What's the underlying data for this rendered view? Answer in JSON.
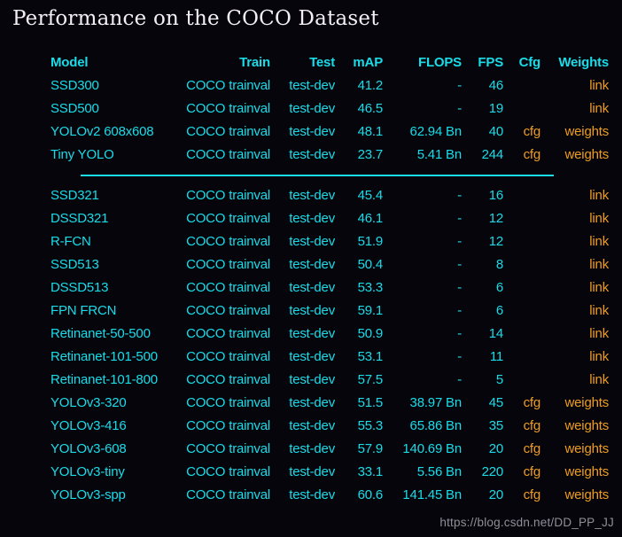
{
  "page": {
    "title": "Performance on the COCO Dataset",
    "watermark": "https://blog.csdn.net/DD_PP_JJ"
  },
  "colors": {
    "background": "#07050c",
    "cyan": "#19dce8",
    "orange": "#ee9d20",
    "title": "#f2f0f4",
    "watermark": "#8f8f98"
  },
  "table": {
    "headers": [
      "Model",
      "Train",
      "Test",
      "mAP",
      "FLOPS",
      "FPS",
      "Cfg",
      "Weights"
    ],
    "groups": [
      {
        "rows": [
          {
            "model": "SSD300",
            "train": "COCO trainval",
            "test": "test-dev",
            "map": "41.2",
            "flops": "-",
            "fps": "46",
            "cfg": "",
            "weights": "link"
          },
          {
            "model": "SSD500",
            "train": "COCO trainval",
            "test": "test-dev",
            "map": "46.5",
            "flops": "-",
            "fps": "19",
            "cfg": "",
            "weights": "link"
          },
          {
            "model": "YOLOv2 608x608",
            "train": "COCO trainval",
            "test": "test-dev",
            "map": "48.1",
            "flops": "62.94 Bn",
            "fps": "40",
            "cfg": "cfg",
            "weights": "weights"
          },
          {
            "model": "Tiny YOLO",
            "train": "COCO trainval",
            "test": "test-dev",
            "map": "23.7",
            "flops": "5.41 Bn",
            "fps": "244",
            "cfg": "cfg",
            "weights": "weights"
          }
        ]
      },
      {
        "rows": [
          {
            "model": "SSD321",
            "train": "COCO trainval",
            "test": "test-dev",
            "map": "45.4",
            "flops": "-",
            "fps": "16",
            "cfg": "",
            "weights": "link"
          },
          {
            "model": "DSSD321",
            "train": "COCO trainval",
            "test": "test-dev",
            "map": "46.1",
            "flops": "-",
            "fps": "12",
            "cfg": "",
            "weights": "link"
          },
          {
            "model": "R-FCN",
            "train": "COCO trainval",
            "test": "test-dev",
            "map": "51.9",
            "flops": "-",
            "fps": "12",
            "cfg": "",
            "weights": "link"
          },
          {
            "model": "SSD513",
            "train": "COCO trainval",
            "test": "test-dev",
            "map": "50.4",
            "flops": "-",
            "fps": "8",
            "cfg": "",
            "weights": "link"
          },
          {
            "model": "DSSD513",
            "train": "COCO trainval",
            "test": "test-dev",
            "map": "53.3",
            "flops": "-",
            "fps": "6",
            "cfg": "",
            "weights": "link"
          },
          {
            "model": "FPN FRCN",
            "train": "COCO trainval",
            "test": "test-dev",
            "map": "59.1",
            "flops": "-",
            "fps": "6",
            "cfg": "",
            "weights": "link"
          },
          {
            "model": "Retinanet-50-500",
            "train": "COCO trainval",
            "test": "test-dev",
            "map": "50.9",
            "flops": "-",
            "fps": "14",
            "cfg": "",
            "weights": "link"
          },
          {
            "model": "Retinanet-101-500",
            "train": "COCO trainval",
            "test": "test-dev",
            "map": "53.1",
            "flops": "-",
            "fps": "11",
            "cfg": "",
            "weights": "link"
          },
          {
            "model": "Retinanet-101-800",
            "train": "COCO trainval",
            "test": "test-dev",
            "map": "57.5",
            "flops": "-",
            "fps": "5",
            "cfg": "",
            "weights": "link"
          },
          {
            "model": "YOLOv3-320",
            "train": "COCO trainval",
            "test": "test-dev",
            "map": "51.5",
            "flops": "38.97 Bn",
            "fps": "45",
            "cfg": "cfg",
            "weights": "weights"
          },
          {
            "model": "YOLOv3-416",
            "train": "COCO trainval",
            "test": "test-dev",
            "map": "55.3",
            "flops": "65.86 Bn",
            "fps": "35",
            "cfg": "cfg",
            "weights": "weights"
          },
          {
            "model": "YOLOv3-608",
            "train": "COCO trainval",
            "test": "test-dev",
            "map": "57.9",
            "flops": "140.69 Bn",
            "fps": "20",
            "cfg": "cfg",
            "weights": "weights"
          },
          {
            "model": "YOLOv3-tiny",
            "train": "COCO trainval",
            "test": "test-dev",
            "map": "33.1",
            "flops": "5.56 Bn",
            "fps": "220",
            "cfg": "cfg",
            "weights": "weights"
          },
          {
            "model": "YOLOv3-spp",
            "train": "COCO trainval",
            "test": "test-dev",
            "map": "60.6",
            "flops": "141.45 Bn",
            "fps": "20",
            "cfg": "cfg",
            "weights": "weights"
          }
        ]
      }
    ]
  }
}
